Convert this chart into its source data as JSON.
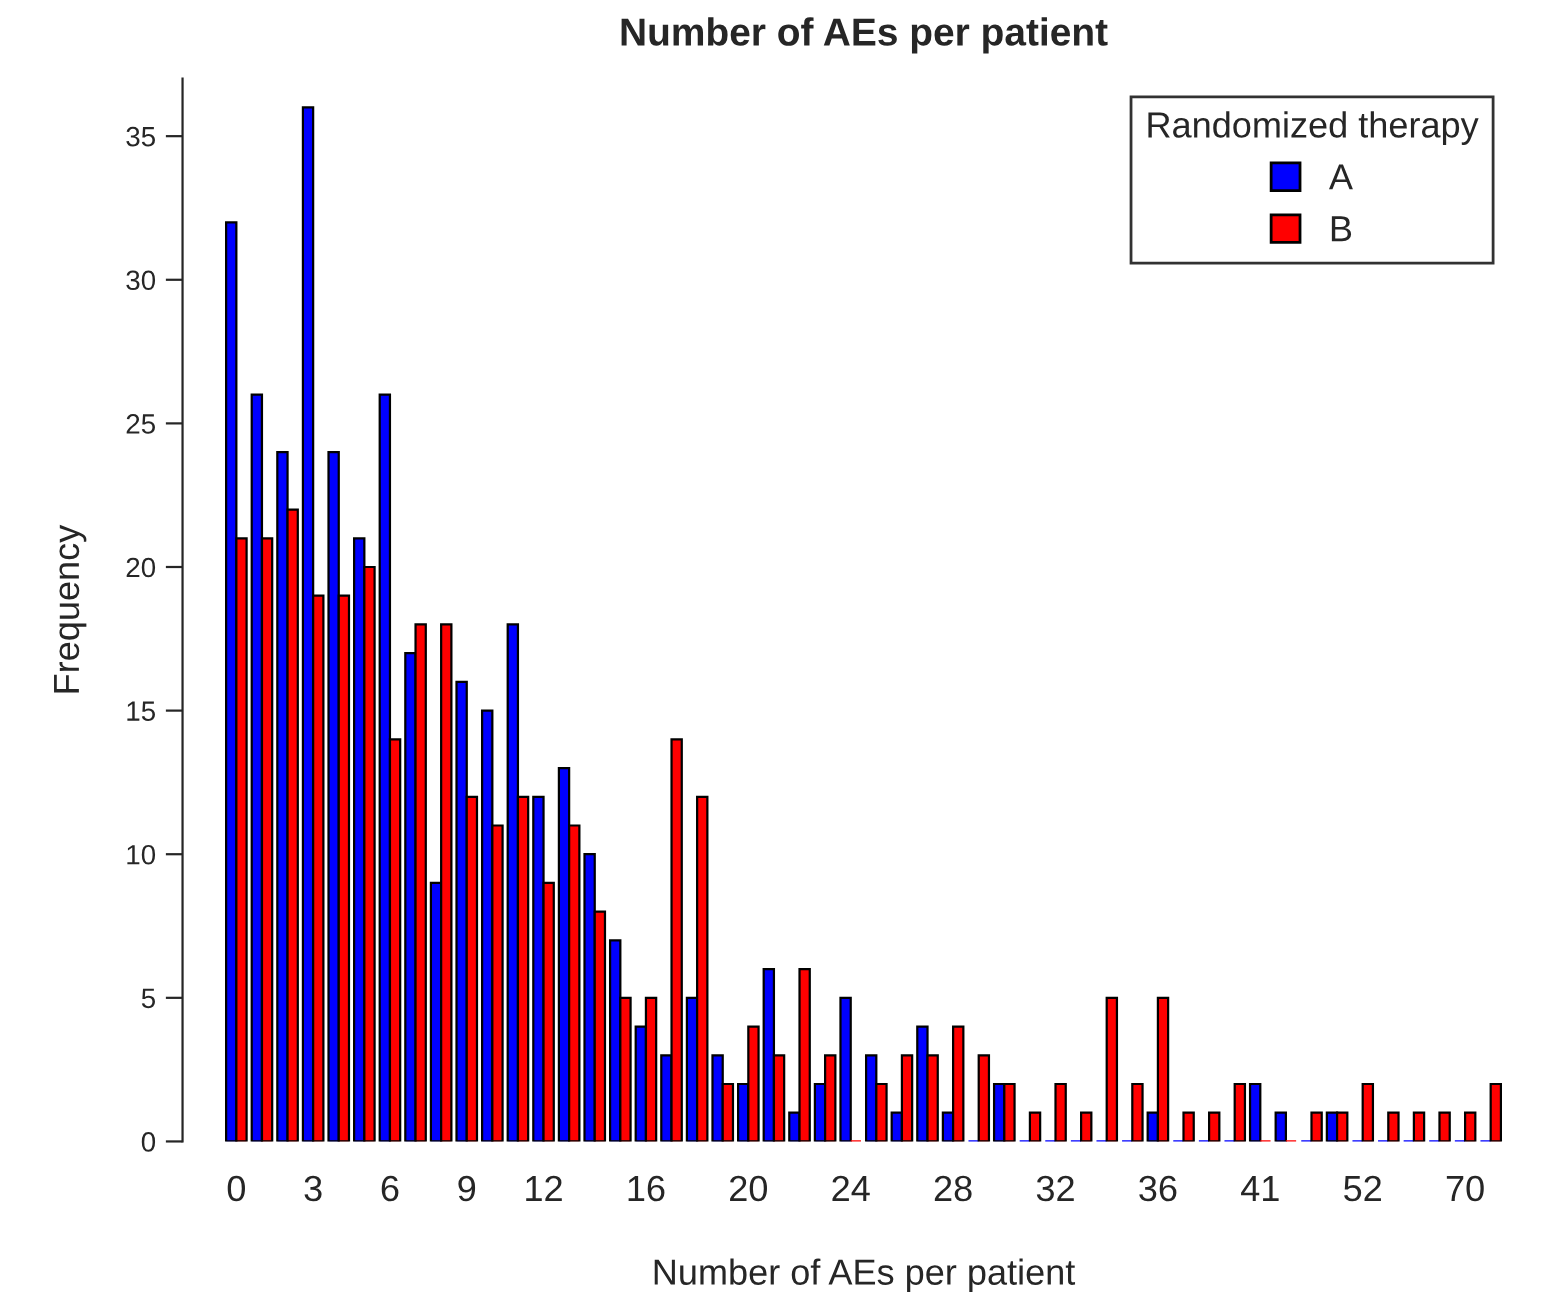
{
  "chart_data": {
    "type": "bar",
    "title": "Number of AEs per patient",
    "xlabel": "Number of AEs per patient",
    "ylabel": "Frequency",
    "legend_title": "Randomized therapy",
    "categories": [
      "0",
      null,
      null,
      "3",
      null,
      null,
      "6",
      null,
      null,
      "9",
      null,
      null,
      "12",
      null,
      null,
      null,
      "16",
      null,
      null,
      null,
      "20",
      null,
      null,
      null,
      "24",
      null,
      null,
      null,
      "28",
      null,
      null,
      null,
      "32",
      null,
      null,
      null,
      "36",
      null,
      null,
      null,
      "41",
      null,
      null,
      null,
      "52",
      null,
      null,
      null,
      "70",
      null
    ],
    "series": [
      {
        "name": "A",
        "color": "#0000ff",
        "values": [
          32,
          26,
          24,
          36,
          24,
          21,
          26,
          17,
          9,
          16,
          15,
          18,
          12,
          13,
          10,
          7,
          4,
          3,
          5,
          3,
          2,
          6,
          1,
          2,
          5,
          3,
          1,
          4,
          1,
          0,
          2,
          0,
          0,
          0,
          0,
          0,
          1,
          0,
          0,
          0,
          2,
          1,
          0,
          1,
          0,
          0,
          0,
          0,
          0,
          0
        ]
      },
      {
        "name": "B",
        "color": "#ff0000",
        "values": [
          21,
          21,
          22,
          19,
          19,
          20,
          14,
          18,
          18,
          12,
          11,
          12,
          9,
          11,
          8,
          5,
          5,
          14,
          12,
          2,
          4,
          3,
          6,
          3,
          0,
          2,
          3,
          3,
          4,
          3,
          2,
          1,
          2,
          1,
          5,
          2,
          5,
          1,
          1,
          2,
          0,
          0,
          1,
          1,
          2,
          1,
          1,
          1,
          1,
          2
        ]
      }
    ],
    "ylim": [
      0,
      37
    ],
    "yticks": [
      0,
      5,
      10,
      15,
      20,
      25,
      30,
      35
    ],
    "grid": false,
    "legend": "top right"
  }
}
